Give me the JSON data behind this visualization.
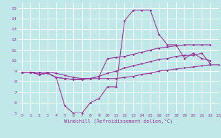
{
  "xlabel": "Windchill (Refroidissement éolien,°C)",
  "ylabel": "",
  "xlim": [
    -0.5,
    23
  ],
  "ylim": [
    5,
    15.5
  ],
  "xticks": [
    0,
    1,
    2,
    3,
    4,
    5,
    6,
    7,
    8,
    9,
    10,
    11,
    12,
    13,
    14,
    15,
    16,
    17,
    18,
    19,
    20,
    21,
    22,
    23
  ],
  "yticks": [
    5,
    6,
    7,
    8,
    9,
    10,
    11,
    12,
    13,
    14,
    15
  ],
  "bg_color": "#c0e8e8",
  "grid_color": "#ffffff",
  "line_color": "#993399",
  "lines": [
    {
      "x": [
        0,
        1,
        2,
        3,
        4,
        5,
        6,
        7,
        8,
        9,
        10,
        11,
        12,
        13,
        14,
        15,
        16,
        17,
        18,
        19,
        20,
        21,
        22
      ],
      "y": [
        8.9,
        8.9,
        8.7,
        8.8,
        8.4,
        5.7,
        5.0,
        5.0,
        6.0,
        6.4,
        7.5,
        7.5,
        13.8,
        14.8,
        14.8,
        14.8,
        12.5,
        11.5,
        11.5,
        10.2,
        10.7,
        10.2,
        10.0
      ]
    },
    {
      "x": [
        0,
        1,
        2,
        3,
        4,
        5,
        6,
        7,
        8,
        9,
        10,
        11,
        12,
        13,
        14,
        15,
        16,
        17,
        18,
        19,
        20,
        21,
        22
      ],
      "y": [
        8.9,
        8.9,
        8.7,
        8.8,
        8.4,
        8.3,
        8.2,
        8.2,
        8.3,
        8.5,
        10.2,
        10.3,
        10.4,
        10.6,
        10.8,
        11.0,
        11.2,
        11.3,
        11.4,
        11.5,
        11.5,
        11.5,
        11.5
      ]
    },
    {
      "x": [
        0,
        1,
        2,
        3,
        4,
        5,
        6,
        7,
        8,
        9,
        10,
        11,
        12,
        13,
        14,
        15,
        16,
        17,
        18,
        19,
        20,
        21,
        22
      ],
      "y": [
        8.9,
        8.9,
        8.7,
        8.8,
        8.4,
        8.3,
        8.2,
        8.2,
        8.3,
        8.5,
        8.8,
        9.0,
        9.3,
        9.5,
        9.7,
        9.9,
        10.1,
        10.2,
        10.4,
        10.5,
        10.5,
        10.7,
        9.7
      ]
    },
    {
      "x": [
        0,
        1,
        2,
        3,
        4,
        5,
        6,
        7,
        8,
        9,
        10,
        11,
        12,
        13,
        14,
        15,
        16,
        17,
        18,
        19,
        20,
        21,
        22,
        23
      ],
      "y": [
        8.9,
        8.9,
        8.9,
        8.9,
        8.8,
        8.6,
        8.4,
        8.3,
        8.3,
        8.3,
        8.3,
        8.3,
        8.4,
        8.5,
        8.7,
        8.8,
        9.0,
        9.1,
        9.2,
        9.3,
        9.4,
        9.5,
        9.6,
        9.6
      ]
    }
  ]
}
